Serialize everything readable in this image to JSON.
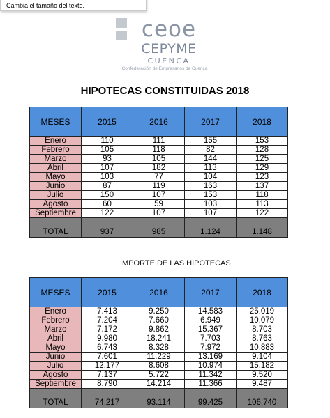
{
  "tooltip": "Cambia el tamaño del texto.",
  "logo": {
    "word1": "ceoe",
    "word2": "CEPYME",
    "word3": "CUENCA",
    "tagline": "Confederación de Empresarios de Cuenca"
  },
  "table1": {
    "title": "HIPOTECAS CONSTITUIDAS 2018",
    "headers": [
      "MESES",
      "2015",
      "2016",
      "2017",
      "2018"
    ],
    "rows": [
      [
        "Enero",
        "110",
        "111",
        "155",
        "153"
      ],
      [
        "Febrero",
        "105",
        "118",
        "82",
        "128"
      ],
      [
        "Marzo",
        "93",
        "105",
        "144",
        "125"
      ],
      [
        "Abril",
        "107",
        "182",
        "113",
        "129"
      ],
      [
        "Mayo",
        "103",
        "77",
        "104",
        "123"
      ],
      [
        "Junio",
        "87",
        "119",
        "163",
        "137"
      ],
      [
        "Julio",
        "150",
        "107",
        "153",
        "118"
      ],
      [
        "Agosto",
        "60",
        "59",
        "103",
        "113"
      ],
      [
        "Septiembre",
        "122",
        "107",
        "107",
        "122"
      ]
    ],
    "total": [
      "TOTAL",
      "937",
      "985",
      "1.124",
      "1.148"
    ]
  },
  "table2": {
    "title": "IMPORTE DE LAS HIPOTECAS",
    "headers": [
      "MESES",
      "2015",
      "2016",
      "2017",
      "2018"
    ],
    "rows": [
      [
        "Enero",
        "7.413",
        "9.250",
        "14.583",
        "25.019"
      ],
      [
        "Febrero",
        "7.204",
        "7.660",
        "6.949",
        "10.079"
      ],
      [
        "Marzo",
        "7.172",
        "9.862",
        "15.367",
        "8.703"
      ],
      [
        "Abril",
        "9.980",
        "18.241",
        "7.703",
        "8.763"
      ],
      [
        "Mayo",
        "6.743",
        "8.328",
        "7.972",
        "10.883"
      ],
      [
        "Junio",
        "7.601",
        "11.229",
        "13.169",
        "9.104"
      ],
      [
        "Julio",
        "12.177",
        "8.608",
        "10.974",
        "15.182"
      ],
      [
        "Agosto",
        "7.137",
        "5.722",
        "11.342",
        "9.520"
      ],
      [
        "Septiembre",
        "8.790",
        "14.214",
        "11.366",
        "9.487"
      ]
    ],
    "total": [
      "TOTAL",
      "74.217",
      "93.114",
      "99.425",
      "106.740"
    ]
  }
}
